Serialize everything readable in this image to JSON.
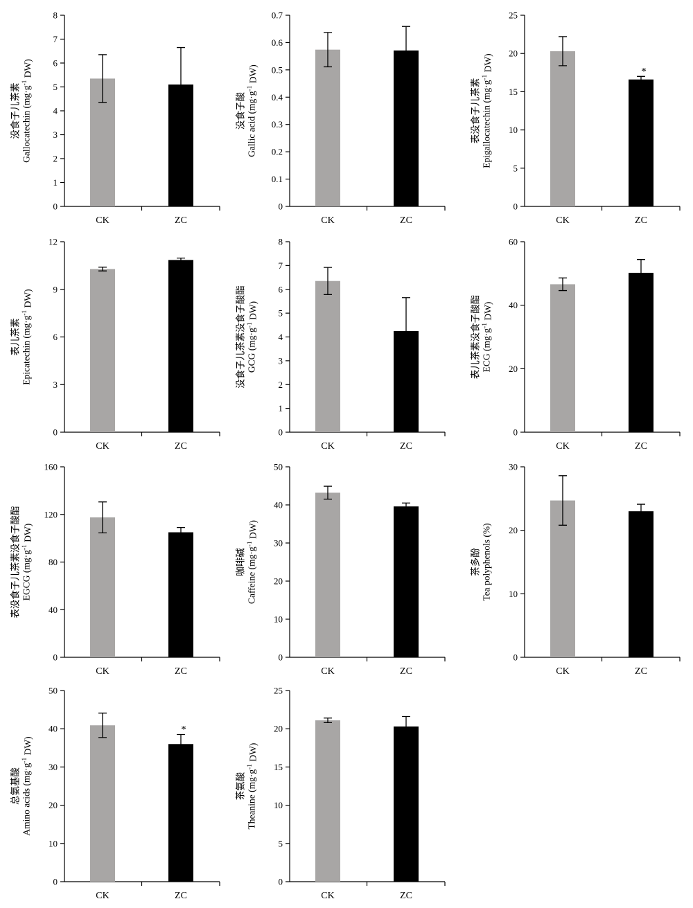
{
  "colors": {
    "CK": "#a8a6a5",
    "ZC": "#000000"
  },
  "chart_data": [
    {
      "type": "bar",
      "title": "",
      "ylabel_cn": "没食子儿茶素",
      "ylabel_en": "Gallocatechin (mg·g",
      "ylabel_sup": "-1",
      "ylabel_tail": " DW)",
      "categories": [
        "CK",
        "ZC"
      ],
      "values": [
        5.35,
        5.1
      ],
      "errors": [
        1.0,
        1.55
      ],
      "sig": [
        "",
        ""
      ],
      "ylim": [
        0,
        8
      ],
      "yticks": [
        0,
        1,
        2,
        3,
        4,
        5,
        6,
        7,
        8
      ]
    },
    {
      "type": "bar",
      "title": "",
      "ylabel_cn": "没食子酸",
      "ylabel_en": "Gallic acid (mg·g",
      "ylabel_sup": "-1",
      "ylabel_tail": " DW)",
      "categories": [
        "CK",
        "ZC"
      ],
      "values": [
        0.574,
        0.571
      ],
      "errors": [
        0.063,
        0.088
      ],
      "sig": [
        "",
        ""
      ],
      "ylim": [
        0,
        0.7
      ],
      "yticks": [
        0,
        0.1,
        0.2,
        0.3,
        0.4,
        0.5,
        0.6,
        0.7
      ]
    },
    {
      "type": "bar",
      "title": "",
      "ylabel_cn": "表没食子儿茶素",
      "ylabel_en": "Epigallocatechin (mg·g",
      "ylabel_sup": "-1",
      "ylabel_tail": " DW)",
      "categories": [
        "CK",
        "ZC"
      ],
      "values": [
        20.3,
        16.6
      ],
      "errors": [
        1.9,
        0.4
      ],
      "sig": [
        "",
        "*"
      ],
      "ylim": [
        0,
        25
      ],
      "yticks": [
        0,
        5,
        10,
        15,
        20,
        25
      ]
    },
    {
      "type": "bar",
      "title": "",
      "ylabel_cn": "表儿茶素",
      "ylabel_en": "Epicatechin (mg·g",
      "ylabel_sup": "-1",
      "ylabel_tail": " DW)",
      "categories": [
        "CK",
        "ZC"
      ],
      "values": [
        10.28,
        10.85
      ],
      "errors": [
        0.12,
        0.12
      ],
      "sig": [
        "",
        ""
      ],
      "ylim": [
        0,
        12
      ],
      "yticks": [
        0,
        3,
        6,
        9,
        12
      ]
    },
    {
      "type": "bar",
      "title": "",
      "ylabel_cn": "没食子儿茶素没食子酸酯",
      "ylabel_en": "GCG (mg·g",
      "ylabel_sup": "-1",
      "ylabel_tail": " DW)",
      "categories": [
        "CK",
        "ZC"
      ],
      "values": [
        6.35,
        4.25
      ],
      "errors": [
        0.57,
        1.4
      ],
      "sig": [
        "",
        ""
      ],
      "ylim": [
        0,
        8
      ],
      "yticks": [
        0,
        1,
        2,
        3,
        4,
        5,
        6,
        7,
        8
      ]
    },
    {
      "type": "bar",
      "title": "",
      "ylabel_cn": "表儿茶素没食子酸酯",
      "ylabel_en": "ECG (mg·g",
      "ylabel_sup": "-1",
      "ylabel_tail": " DW)",
      "categories": [
        "CK",
        "ZC"
      ],
      "values": [
        46.6,
        50.2
      ],
      "errors": [
        2.0,
        4.2
      ],
      "sig": [
        "",
        ""
      ],
      "ylim": [
        0,
        60
      ],
      "yticks": [
        0,
        20,
        40,
        60
      ]
    },
    {
      "type": "bar",
      "title": "",
      "ylabel_cn": "表没食子儿茶素没食子酸酯",
      "ylabel_en": "EGCG (mg·g",
      "ylabel_sup": "-1",
      "ylabel_tail": " DW)",
      "categories": [
        "CK",
        "ZC"
      ],
      "values": [
        117.5,
        105.0
      ],
      "errors": [
        13.0,
        4.0
      ],
      "sig": [
        "",
        ""
      ],
      "ylim": [
        0,
        160
      ],
      "yticks": [
        0,
        40,
        80,
        120,
        160
      ]
    },
    {
      "type": "bar",
      "title": "",
      "ylabel_cn": "咖啡碱",
      "ylabel_en": "Caffeine (mg·g",
      "ylabel_sup": "-1",
      "ylabel_tail": " DW)",
      "categories": [
        "CK",
        "ZC"
      ],
      "values": [
        43.2,
        39.6
      ],
      "errors": [
        1.7,
        0.9
      ],
      "sig": [
        "",
        ""
      ],
      "ylim": [
        0,
        50
      ],
      "yticks": [
        0,
        10,
        20,
        30,
        40,
        50
      ]
    },
    {
      "type": "bar",
      "title": "",
      "ylabel_cn": "茶多酚",
      "ylabel_en": "Tea polyphenols (%)",
      "ylabel_sup": "",
      "ylabel_tail": "",
      "categories": [
        "CK",
        "ZC"
      ],
      "values": [
        24.7,
        23.0
      ],
      "errors": [
        3.9,
        1.1
      ],
      "sig": [
        "",
        ""
      ],
      "ylim": [
        0,
        30
      ],
      "yticks": [
        0,
        10,
        20,
        30
      ]
    },
    {
      "type": "bar",
      "title": "",
      "ylabel_cn": "总氨基酸",
      "ylabel_en": "Amino acids (mg·g",
      "ylabel_sup": "-1",
      "ylabel_tail": " DW)",
      "categories": [
        "CK",
        "ZC"
      ],
      "values": [
        40.9,
        36.0
      ],
      "errors": [
        3.2,
        2.5
      ],
      "sig": [
        "",
        "*"
      ],
      "ylim": [
        0,
        50
      ],
      "yticks": [
        0,
        10,
        20,
        30,
        40,
        50
      ]
    },
    {
      "type": "bar",
      "title": "",
      "ylabel_cn": "茶氨酸",
      "ylabel_en": "Theanine (mg·g",
      "ylabel_sup": "-1",
      "ylabel_tail": " DW)",
      "categories": [
        "CK",
        "ZC"
      ],
      "values": [
        21.1,
        20.3
      ],
      "errors": [
        0.3,
        1.3
      ],
      "sig": [
        "",
        ""
      ],
      "ylim": [
        0,
        25
      ],
      "yticks": [
        0,
        5,
        10,
        15,
        20,
        25
      ]
    }
  ]
}
